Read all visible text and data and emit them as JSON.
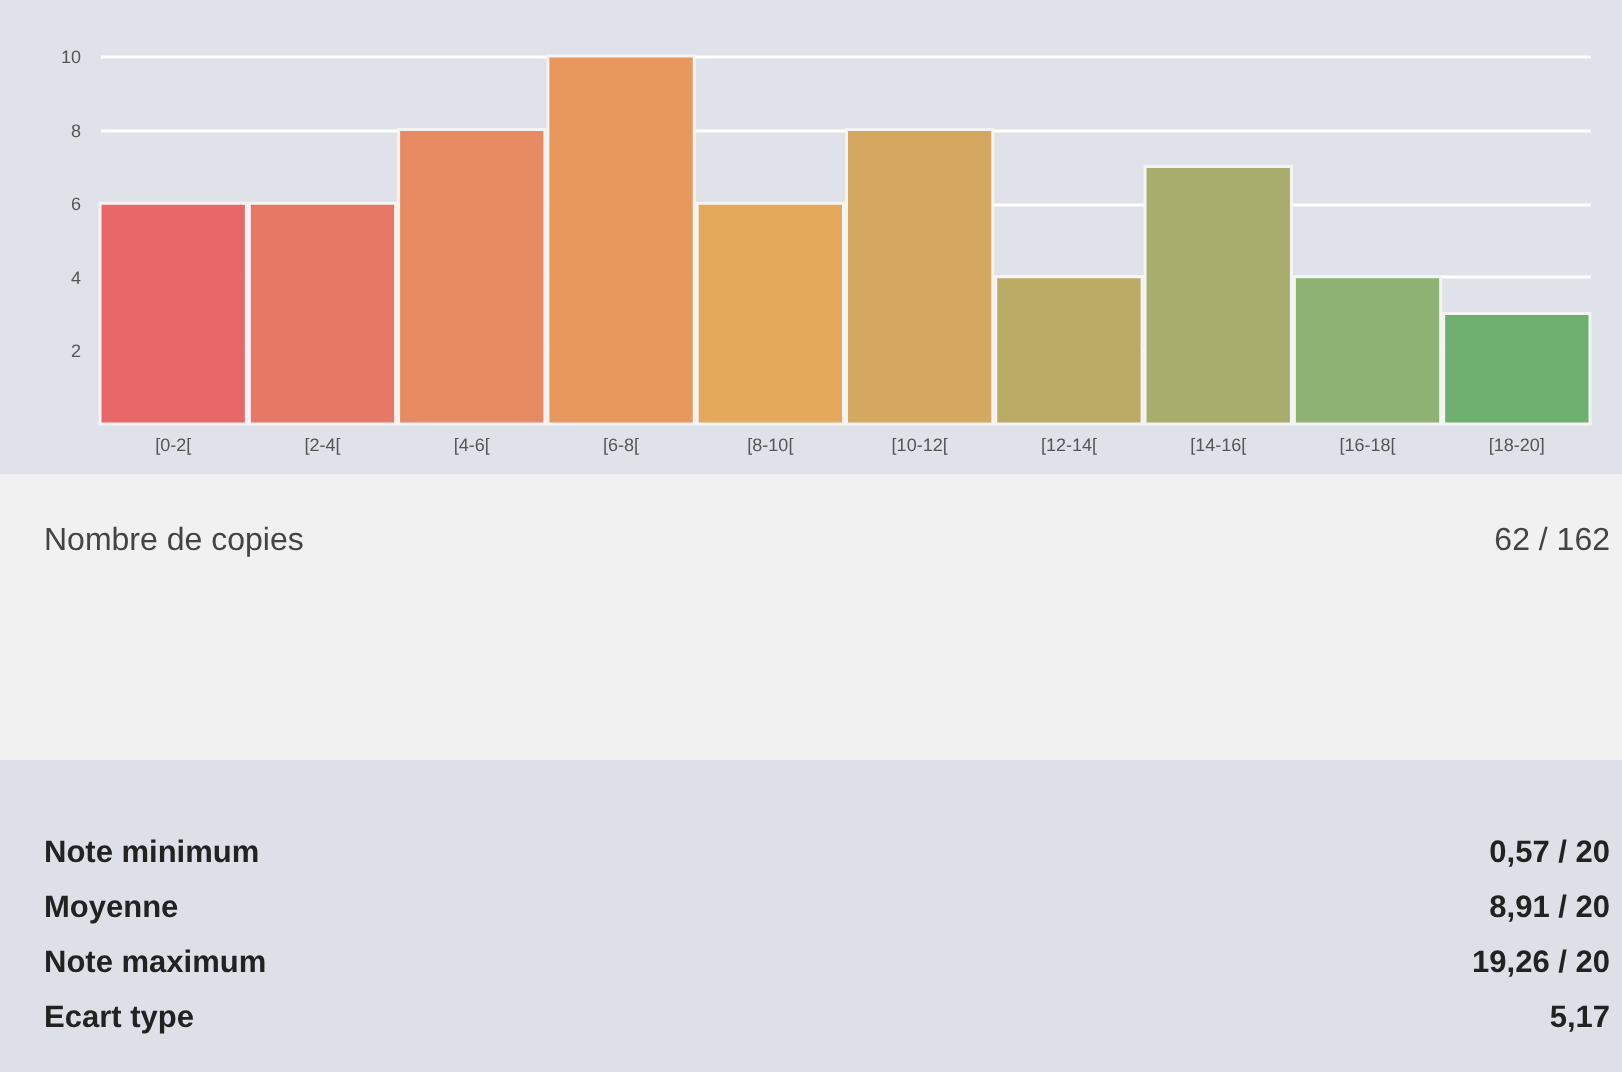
{
  "chart_data": {
    "type": "bar",
    "categories": [
      "[0-2[",
      "[2-4[",
      "[4-6[",
      "[6-8[",
      "[8-10[",
      "[10-12[",
      "[12-14[",
      "[14-16[",
      "[16-18[",
      "[18-20]"
    ],
    "values": [
      6,
      6,
      8,
      10,
      6,
      8,
      4,
      7,
      4,
      3
    ],
    "colors": [
      "#e8686a",
      "#e87866",
      "#e88a62",
      "#e8985c",
      "#e3a85a",
      "#d4a85e",
      "#bcab64",
      "#a8ac6c",
      "#8eb274",
      "#6fb070"
    ],
    "ylim": [
      0,
      10
    ],
    "yticks": [
      2,
      4,
      6,
      8,
      10
    ],
    "grid": "y",
    "annotations": [
      "Nombre de copies",
      "62 / 162",
      "Note minimum",
      "0,57 / 20",
      "Moyenne",
      "8,91 / 20",
      "Note maximum",
      "19,26 / 20",
      "Ecart type",
      "5,17"
    ]
  }
}
